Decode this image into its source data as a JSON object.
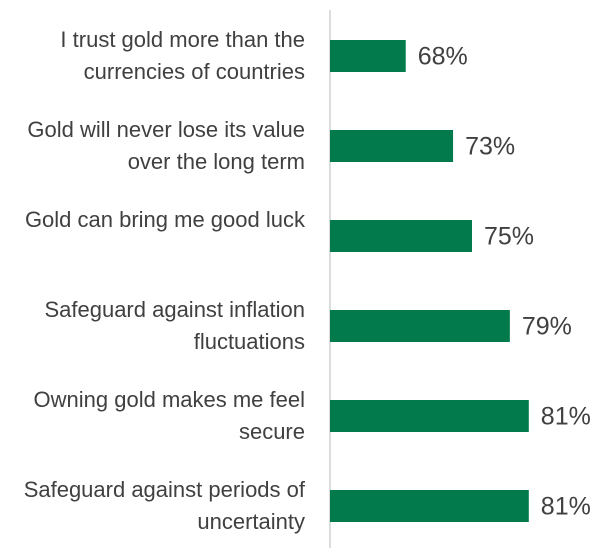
{
  "chart_data": {
    "type": "bar",
    "orientation": "horizontal",
    "categories": [
      "I trust gold more than the currencies of countries",
      "Gold will never lose its value over the long term",
      "Gold can bring me good luck",
      "Safeguard against inflation fluctuations",
      "Owning gold makes me feel secure",
      "Safeguard against periods of uncertainty"
    ],
    "values": [
      68,
      73,
      75,
      79,
      81,
      81
    ],
    "value_labels": [
      "68%",
      "73%",
      "75%",
      "79%",
      "81%",
      "81%"
    ],
    "color": "#037a4b",
    "xlim": [
      60,
      90
    ]
  }
}
